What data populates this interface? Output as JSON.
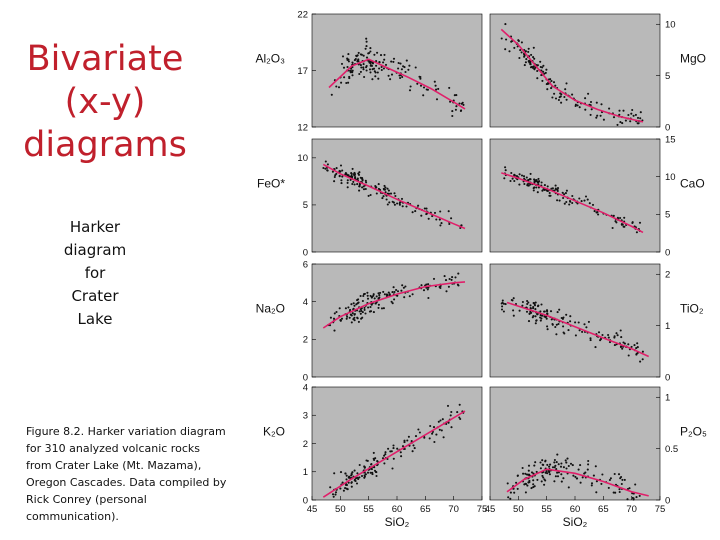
{
  "slide": {
    "title_lines": [
      "Bivariate",
      "(x-y)",
      "diagrams"
    ],
    "subtitle_lines": [
      "Harker",
      "diagram",
      "for",
      "Crater",
      "Lake"
    ],
    "caption_lines": [
      "Figure 8.2. Harker variation diagram",
      "for 310 analyzed volcanic rocks",
      "from Crater Lake (Mt. Mazama),",
      "Oregon Cascades. Data compiled by",
      "Rick Conrey (personal",
      "communication)."
    ]
  },
  "colors": {
    "title": "#c0202c",
    "fit_line": "#e0206a",
    "panel": "#b9b9b9",
    "points": "#111111"
  },
  "chart_data": [
    {
      "type": "scatter",
      "oxide": "Al2O3",
      "oxide_label": "Al₂O₃",
      "side": "left",
      "row": 0,
      "xlim": [
        45,
        75
      ],
      "ylim": [
        12,
        22
      ],
      "yticks": [
        22,
        17,
        12
      ],
      "xticks": [],
      "trend": [
        [
          48,
          15.5
        ],
        [
          52,
          17.4
        ],
        [
          55,
          18.0
        ],
        [
          58,
          17.3
        ],
        [
          62,
          16.4
        ],
        [
          66,
          15.4
        ],
        [
          70,
          14.2
        ],
        [
          72,
          13.6
        ]
      ],
      "scatter_sigma": 0.7,
      "scatter_x_range": [
        48,
        72
      ]
    },
    {
      "type": "scatter",
      "oxide": "MgO",
      "oxide_label": "MgO",
      "side": "right",
      "row": 0,
      "xlim": [
        45,
        75
      ],
      "ylim": [
        0,
        11
      ],
      "yticks": [
        10,
        5,
        0
      ],
      "xticks": [],
      "trend": [
        [
          47,
          9.5
        ],
        [
          50,
          8.0
        ],
        [
          53,
          6.0
        ],
        [
          56,
          4.0
        ],
        [
          60,
          2.6
        ],
        [
          64,
          1.7
        ],
        [
          68,
          1.0
        ],
        [
          72,
          0.5
        ]
      ],
      "scatter_sigma": 0.55,
      "scatter_x_range": [
        47,
        72
      ]
    },
    {
      "type": "scatter",
      "oxide": "FeO*",
      "oxide_label": "FeO*",
      "side": "left",
      "row": 1,
      "xlim": [
        45,
        75
      ],
      "ylim": [
        0,
        12
      ],
      "yticks": [
        10,
        5,
        0
      ],
      "xticks": [],
      "trend": [
        [
          47,
          9.3
        ],
        [
          50,
          8.3
        ],
        [
          55,
          7.0
        ],
        [
          60,
          5.6
        ],
        [
          65,
          4.3
        ],
        [
          70,
          3.0
        ],
        [
          72,
          2.5
        ]
      ],
      "scatter_sigma": 0.45,
      "scatter_x_range": [
        47,
        72
      ]
    },
    {
      "type": "scatter",
      "oxide": "CaO",
      "oxide_label": "CaO",
      "side": "right",
      "row": 1,
      "xlim": [
        45,
        75
      ],
      "ylim": [
        0,
        15
      ],
      "yticks": [
        15,
        10,
        5,
        0
      ],
      "xticks": [],
      "trend": [
        [
          47,
          10.5
        ],
        [
          50,
          9.8
        ],
        [
          55,
          8.4
        ],
        [
          60,
          6.8
        ],
        [
          65,
          5.2
        ],
        [
          70,
          3.4
        ],
        [
          72,
          2.6
        ]
      ],
      "scatter_sigma": 0.5,
      "scatter_x_range": [
        47,
        72
      ]
    },
    {
      "type": "scatter",
      "oxide": "Na2O",
      "oxide_label": "Na₂O",
      "side": "left",
      "row": 2,
      "xlim": [
        45,
        75
      ],
      "ylim": [
        0,
        6
      ],
      "yticks": [
        6,
        4,
        2,
        0
      ],
      "xticks": [],
      "trend": [
        [
          47,
          2.6
        ],
        [
          50,
          3.2
        ],
        [
          55,
          3.9
        ],
        [
          60,
          4.4
        ],
        [
          65,
          4.8
        ],
        [
          70,
          5.0
        ],
        [
          72,
          5.05
        ]
      ],
      "scatter_sigma": 0.28,
      "scatter_x_range": [
        47,
        72
      ]
    },
    {
      "type": "scatter",
      "oxide": "TiO2",
      "oxide_label": "TiO₂",
      "side": "right",
      "row": 2,
      "xlim": [
        45,
        75
      ],
      "ylim": [
        0,
        2.2
      ],
      "yticks": [
        2,
        1,
        0
      ],
      "xticks": [],
      "trend": [
        [
          48,
          1.45
        ],
        [
          55,
          1.2
        ],
        [
          60,
          0.98
        ],
        [
          65,
          0.76
        ],
        [
          70,
          0.55
        ],
        [
          73,
          0.4
        ]
      ],
      "scatter_sigma": 0.1,
      "scatter_x_range": [
        47,
        72
      ]
    },
    {
      "type": "scatter",
      "oxide": "K2O",
      "oxide_label": "K₂O",
      "side": "left",
      "row": 3,
      "xlim": [
        45,
        75
      ],
      "ylim": [
        0,
        4
      ],
      "yticks": [
        4,
        3,
        2,
        1,
        0
      ],
      "xticks": [
        45,
        50,
        55,
        60,
        65,
        70,
        75
      ],
      "xlabel": "SiO₂",
      "trend": [
        [
          47,
          0.1
        ],
        [
          52,
          0.75
        ],
        [
          57,
          1.35
        ],
        [
          62,
          1.95
        ],
        [
          67,
          2.55
        ],
        [
          72,
          3.15
        ]
      ],
      "scatter_sigma": 0.2,
      "scatter_x_range": [
        48,
        72
      ]
    },
    {
      "type": "scatter",
      "oxide": "P2O5",
      "oxide_label": "P₂O₅",
      "side": "right",
      "row": 3,
      "xlim": [
        45,
        75
      ],
      "ylim": [
        0,
        1.1
      ],
      "yticks": [
        1.0,
        0.5,
        0.0
      ],
      "xticks": [
        45,
        50,
        55,
        60,
        65,
        70,
        75
      ],
      "xlabel": "SiO₂",
      "trend": [
        [
          48,
          0.08
        ],
        [
          51,
          0.2
        ],
        [
          55,
          0.3
        ],
        [
          60,
          0.26
        ],
        [
          65,
          0.18
        ],
        [
          70,
          0.08
        ],
        [
          73,
          0.04
        ]
      ],
      "scatter_sigma": 0.06,
      "scatter_x_range": [
        48,
        72
      ]
    }
  ]
}
